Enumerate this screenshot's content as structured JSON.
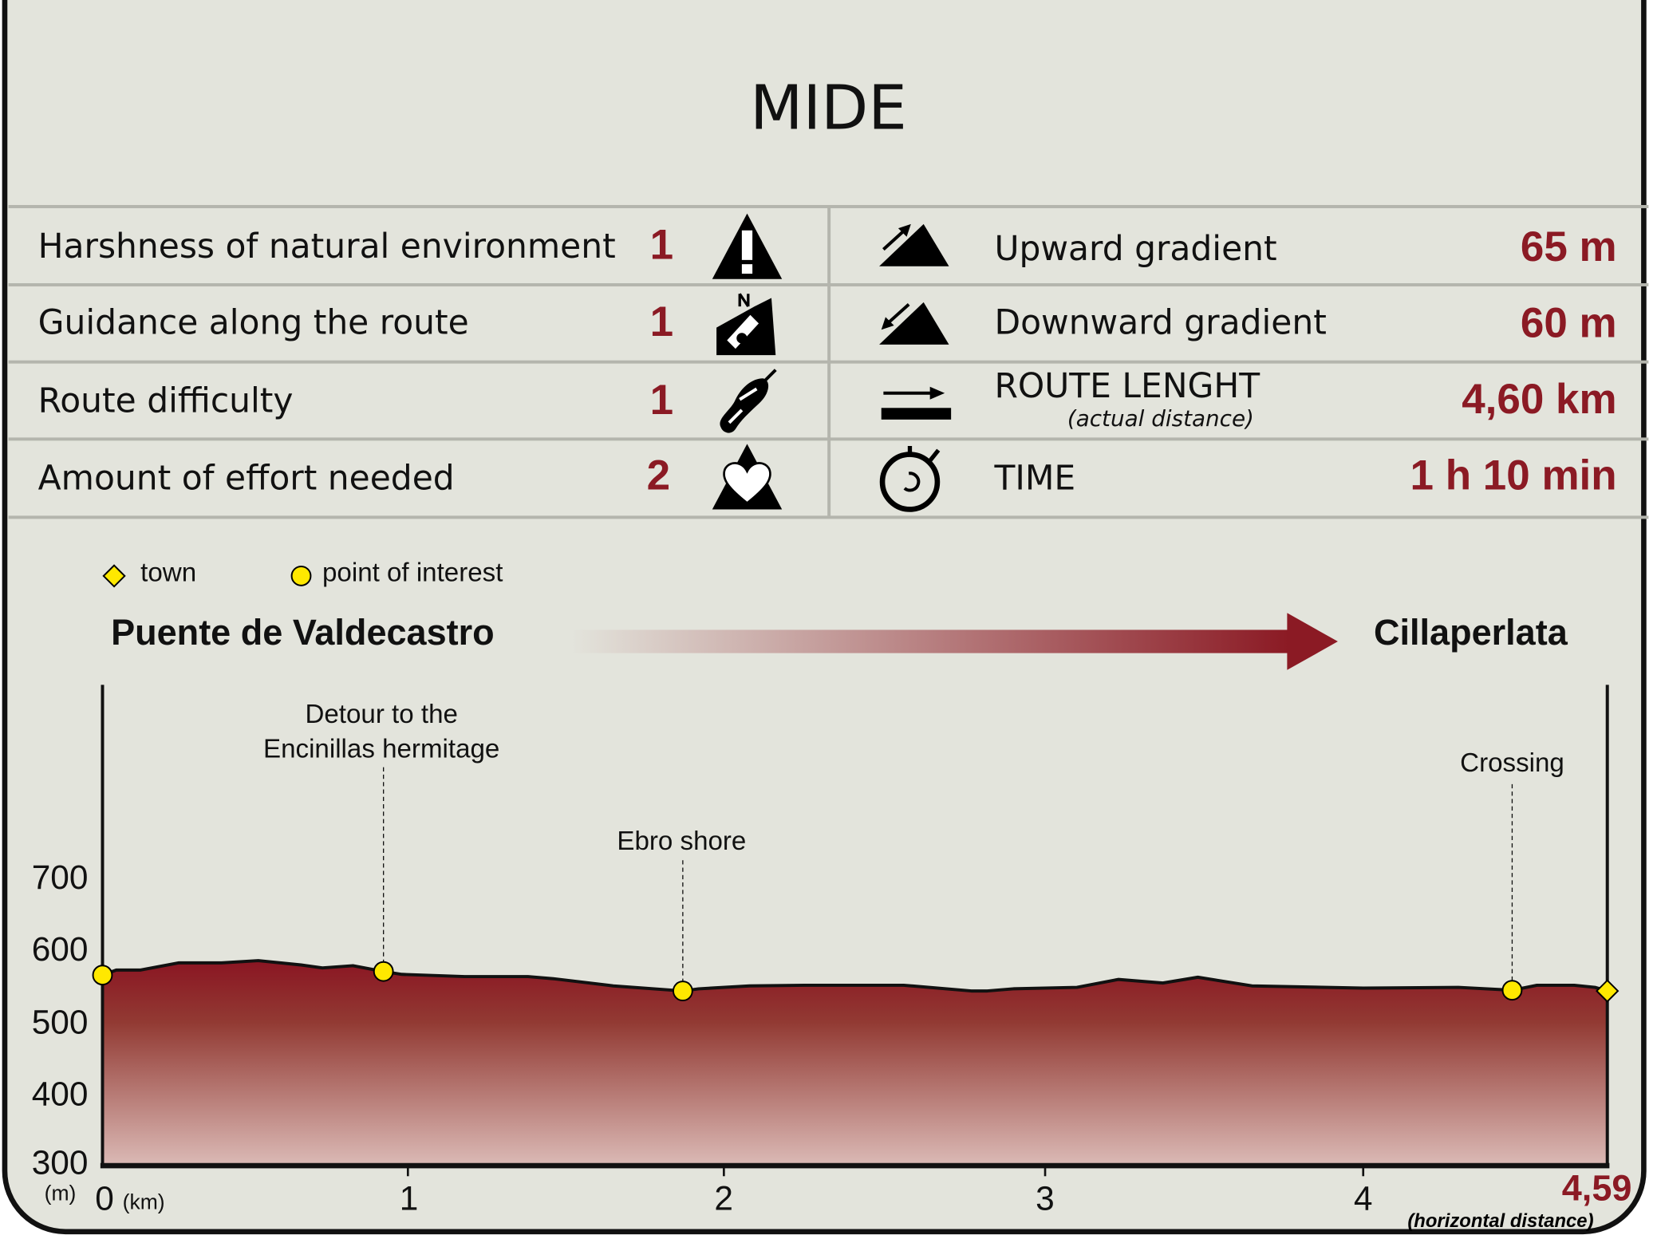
{
  "title": "MIDE",
  "mide": [
    {
      "label": "Harshness of natural environment",
      "value": "1",
      "icon": "warning-triangle-icon"
    },
    {
      "label": "Guidance along the route",
      "value": "1",
      "icon": "orientation-map-icon"
    },
    {
      "label": "Route difficulty",
      "value": "1",
      "icon": "footprint-icon"
    },
    {
      "label": "Amount of effort needed",
      "value": "2",
      "icon": "heart-mountain-icon"
    }
  ],
  "stats": [
    {
      "label": "Upward gradient",
      "value": "65 m",
      "icon": "upward-gradient-icon"
    },
    {
      "label": "Downward gradient",
      "value": "60 m",
      "icon": "downward-gradient-icon"
    },
    {
      "label": "ROUTE LENGHT",
      "sublabel": "(actual distance)",
      "value": "4,60 km",
      "icon": "route-length-icon"
    },
    {
      "label": "TIME",
      "value": "1 h 10 min",
      "icon": "stopwatch-icon"
    }
  ],
  "legend": {
    "town": "town",
    "poi": "point of interest"
  },
  "route": {
    "start": "Puente de Valdecastro",
    "end": "Cillaperlata"
  },
  "colors": {
    "accent": "#8b1a24",
    "marker": "#ffe800",
    "background": "#e3e4dc"
  },
  "chart_data": {
    "type": "area",
    "xlabel": "(km)",
    "ylabel": "(m)",
    "x_end_label": "4,59",
    "x_note": "(horizontal distance)",
    "xlim": [
      0,
      4.59
    ],
    "ylim": [
      300,
      700
    ],
    "x_ticks": [
      "0",
      "1",
      "2",
      "3",
      "4"
    ],
    "y_ticks": [
      "700",
      "600",
      "500",
      "400",
      "300"
    ],
    "grid": false,
    "x": [
      0,
      0.045,
      0.125,
      0.25,
      0.39,
      0.51,
      0.65,
      0.72,
      0.82,
      0.92,
      0.98,
      1.18,
      1.38,
      1.46,
      1.65,
      1.87,
      1.92,
      2.08,
      2.25,
      2.56,
      2.77,
      2.82,
      2.9,
      3.1,
      3.23,
      3.37,
      3.48,
      3.65,
      4.0,
      4.23,
      4.36,
      4.42,
      4.51,
      4.56,
      4.59
    ],
    "y": [
      564,
      571,
      571,
      581,
      581,
      584,
      578,
      574,
      577,
      569,
      565,
      562,
      562,
      559,
      549,
      542,
      545,
      549,
      550,
      550,
      542,
      542,
      545,
      547,
      558,
      553,
      561,
      549,
      546,
      547,
      543,
      550,
      550,
      547,
      542
    ],
    "markers": [
      {
        "type": "point of interest",
        "x": 0,
        "y": 564,
        "label": ""
      },
      {
        "type": "point of interest",
        "x": 0.92,
        "y": 569,
        "label": "Detour to the\nEncinillas hermitage"
      },
      {
        "type": "point of interest",
        "x": 1.87,
        "y": 542,
        "label": "Ebro shore"
      },
      {
        "type": "point of interest",
        "x": 4.36,
        "y": 543,
        "label": "Crossing"
      },
      {
        "type": "town",
        "x": 4.59,
        "y": 542,
        "label": ""
      }
    ]
  }
}
